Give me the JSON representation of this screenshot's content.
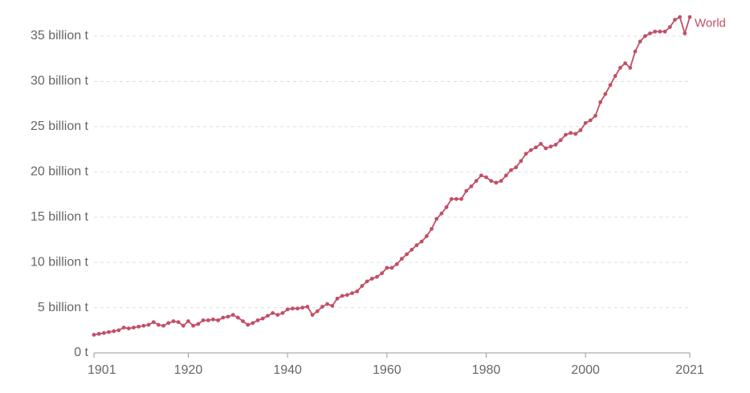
{
  "chart_data": {
    "type": "line",
    "x": [
      1901,
      1902,
      1903,
      1904,
      1905,
      1906,
      1907,
      1908,
      1909,
      1910,
      1911,
      1912,
      1913,
      1914,
      1915,
      1916,
      1917,
      1918,
      1919,
      1920,
      1921,
      1922,
      1923,
      1924,
      1925,
      1926,
      1927,
      1928,
      1929,
      1930,
      1931,
      1932,
      1933,
      1934,
      1935,
      1936,
      1937,
      1938,
      1939,
      1940,
      1941,
      1942,
      1943,
      1944,
      1945,
      1946,
      1947,
      1948,
      1949,
      1950,
      1951,
      1952,
      1953,
      1954,
      1955,
      1956,
      1957,
      1958,
      1959,
      1960,
      1961,
      1962,
      1963,
      1964,
      1965,
      1966,
      1967,
      1968,
      1969,
      1970,
      1971,
      1972,
      1973,
      1974,
      1975,
      1976,
      1977,
      1978,
      1979,
      1980,
      1981,
      1982,
      1983,
      1984,
      1985,
      1986,
      1987,
      1988,
      1989,
      1990,
      1991,
      1992,
      1993,
      1994,
      1995,
      1996,
      1997,
      1998,
      1999,
      2000,
      2001,
      2002,
      2003,
      2004,
      2005,
      2006,
      2007,
      2008,
      2009,
      2010,
      2011,
      2012,
      2013,
      2014,
      2015,
      2016,
      2017,
      2018,
      2019,
      2020,
      2021
    ],
    "series": [
      {
        "name": "World",
        "color": "#c15065",
        "values": [
          2.0,
          2.1,
          2.2,
          2.3,
          2.4,
          2.5,
          2.8,
          2.7,
          2.8,
          2.9,
          3.0,
          3.1,
          3.4,
          3.1,
          3.0,
          3.3,
          3.5,
          3.4,
          3.0,
          3.5,
          3.0,
          3.2,
          3.6,
          3.6,
          3.7,
          3.6,
          3.9,
          4.0,
          4.2,
          3.9,
          3.5,
          3.1,
          3.3,
          3.6,
          3.8,
          4.1,
          4.4,
          4.2,
          4.4,
          4.8,
          4.9,
          4.9,
          5.0,
          5.1,
          4.2,
          4.6,
          5.1,
          5.4,
          5.2,
          6.0,
          6.3,
          6.4,
          6.6,
          6.8,
          7.4,
          7.9,
          8.2,
          8.4,
          8.8,
          9.4,
          9.4,
          9.8,
          10.4,
          10.9,
          11.4,
          11.9,
          12.3,
          12.9,
          13.7,
          14.8,
          15.4,
          16.1,
          17.0,
          17.0,
          17.0,
          17.9,
          18.4,
          19.0,
          19.6,
          19.4,
          19.0,
          18.8,
          19.0,
          19.6,
          20.2,
          20.5,
          21.2,
          22.0,
          22.4,
          22.7,
          23.1,
          22.6,
          22.8,
          23.0,
          23.5,
          24.1,
          24.3,
          24.2,
          24.6,
          25.4,
          25.7,
          26.2,
          27.7,
          28.6,
          29.6,
          30.6,
          31.5,
          32.0,
          31.5,
          33.3,
          34.4,
          35.0,
          35.3,
          35.5,
          35.5,
          35.5,
          36.0,
          36.8,
          37.1,
          35.3,
          37.1
        ]
      }
    ],
    "xlim": [
      1901,
      2021
    ],
    "xticks": [
      1901,
      1920,
      1940,
      1960,
      1980,
      2000,
      2021
    ],
    "ylim": [
      0,
      37.5
    ],
    "yticks": [
      {
        "value": 0,
        "label": "0 t"
      },
      {
        "value": 5,
        "label": "5 billion t"
      },
      {
        "value": 10,
        "label": "10 billion t"
      },
      {
        "value": 15,
        "label": "15 billion t"
      },
      {
        "value": 20,
        "label": "20 billion t"
      },
      {
        "value": 25,
        "label": "25 billion t"
      },
      {
        "value": 30,
        "label": "30 billion t"
      },
      {
        "value": 35,
        "label": "35 billion t"
      }
    ],
    "grid": true
  }
}
